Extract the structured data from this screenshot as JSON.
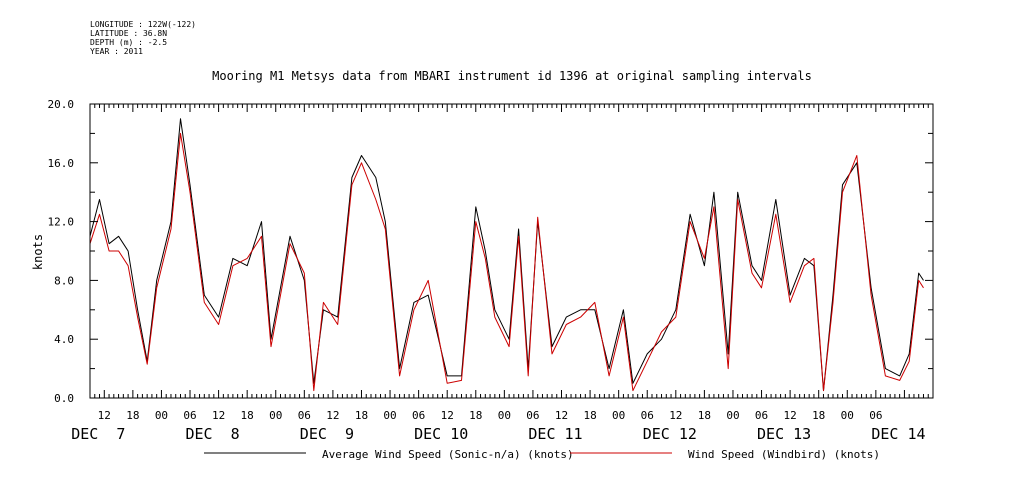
{
  "header": {
    "longitude": "LONGITUDE : 122W(-122)",
    "latitude": "LATITUDE : 36.8N",
    "depth": "DEPTH (m) : -2.5",
    "year": "YEAR : 2011"
  },
  "colors": {
    "axis": "#000000",
    "series1": "#000000",
    "series2": "#cc0000"
  },
  "chart_data": {
    "type": "line",
    "title": "Mooring M1 Metsys data from MBARI instrument id 1396 at original sampling intervals",
    "ylabel": "knots",
    "xlabel": "",
    "ylim": [
      0,
      20
    ],
    "yticks": [
      "0.0",
      "4.0",
      "8.0",
      "12.0",
      "16.0",
      "20.0"
    ],
    "xlim": [
      "2011-12-07T09:00",
      "2011-12-14T18:00"
    ],
    "hour_ticks": [
      {
        "t": "2011-12-07T12:00",
        "label": "12"
      },
      {
        "t": "2011-12-07T18:00",
        "label": "18"
      },
      {
        "t": "2011-12-08T00:00",
        "label": "00"
      },
      {
        "t": "2011-12-08T06:00",
        "label": "06"
      },
      {
        "t": "2011-12-08T12:00",
        "label": "12"
      },
      {
        "t": "2011-12-08T18:00",
        "label": "18"
      },
      {
        "t": "2011-12-09T00:00",
        "label": "00"
      },
      {
        "t": "2011-12-09T06:00",
        "label": "06"
      },
      {
        "t": "2011-12-09T12:00",
        "label": "12"
      },
      {
        "t": "2011-12-09T18:00",
        "label": "18"
      },
      {
        "t": "2011-12-10T00:00",
        "label": "00"
      },
      {
        "t": "2011-12-10T06:00",
        "label": "06"
      },
      {
        "t": "2011-12-10T12:00",
        "label": "12"
      },
      {
        "t": "2011-12-10T18:00",
        "label": "18"
      },
      {
        "t": "2011-12-11T00:00",
        "label": "00"
      },
      {
        "t": "2011-12-11T06:00",
        "label": "06"
      },
      {
        "t": "2011-12-11T12:00",
        "label": "12"
      },
      {
        "t": "2011-12-11T18:00",
        "label": "18"
      },
      {
        "t": "2011-12-12T00:00",
        "label": "00"
      },
      {
        "t": "2011-12-12T06:00",
        "label": "06"
      },
      {
        "t": "2011-12-12T12:00",
        "label": "12"
      },
      {
        "t": "2011-12-12T18:00",
        "label": "18"
      },
      {
        "t": "2011-12-13T00:00",
        "label": "00"
      },
      {
        "t": "2011-12-13T06:00",
        "label": "06"
      },
      {
        "t": "2011-12-13T12:00",
        "label": "12"
      },
      {
        "t": "2011-12-13T18:00",
        "label": "18"
      },
      {
        "t": "2011-12-14T00:00",
        "label": "00"
      },
      {
        "t": "2011-12-14T06:00",
        "label": "06"
      }
    ],
    "day_labels": [
      {
        "t": "2011-12-07T12:00",
        "label": "DEC  7"
      },
      {
        "t": "2011-12-08T12:00",
        "label": "DEC  8"
      },
      {
        "t": "2011-12-09T12:00",
        "label": "DEC  9"
      },
      {
        "t": "2011-12-10T12:00",
        "label": "DEC 10"
      },
      {
        "t": "2011-12-11T12:00",
        "label": "DEC 11"
      },
      {
        "t": "2011-12-12T12:00",
        "label": "DEC 12"
      },
      {
        "t": "2011-12-13T12:00",
        "label": "DEC 13"
      },
      {
        "t": "2011-12-14T12:00",
        "label": "DEC 14"
      }
    ],
    "series": [
      {
        "name": "Average Wind Speed (Sonic-n/a) (knots)",
        "x": [
          "2011-12-07T09:00",
          "2011-12-07T11:00",
          "2011-12-07T13:00",
          "2011-12-07T15:00",
          "2011-12-07T17:00",
          "2011-12-07T19:00",
          "2011-12-07T21:00",
          "2011-12-07T23:00",
          "2011-12-08T02:00",
          "2011-12-08T04:00",
          "2011-12-08T06:00",
          "2011-12-08T09:00",
          "2011-12-08T12:00",
          "2011-12-08T15:00",
          "2011-12-08T18:00",
          "2011-12-08T21:00",
          "2011-12-08T23:00",
          "2011-12-09T03:00",
          "2011-12-09T06:00",
          "2011-12-09T08:00",
          "2011-12-09T10:00",
          "2011-12-09T13:00",
          "2011-12-09T16:00",
          "2011-12-09T18:00",
          "2011-12-09T21:00",
          "2011-12-09T23:00",
          "2011-12-10T02:00",
          "2011-12-10T05:00",
          "2011-12-10T08:00",
          "2011-12-10T12:00",
          "2011-12-10T15:00",
          "2011-12-10T18:00",
          "2011-12-10T20:00",
          "2011-12-10T22:00",
          "2011-12-11T01:00",
          "2011-12-11T03:00",
          "2011-12-11T05:00",
          "2011-12-11T07:00",
          "2011-12-11T10:00",
          "2011-12-11T13:00",
          "2011-12-11T16:00",
          "2011-12-11T19:00",
          "2011-12-11T22:00",
          "2011-12-12T01:00",
          "2011-12-12T03:00",
          "2011-12-12T06:00",
          "2011-12-12T09:00",
          "2011-12-12T12:00",
          "2011-12-12T15:00",
          "2011-12-12T18:00",
          "2011-12-12T20:00",
          "2011-12-12T23:00",
          "2011-12-13T01:00",
          "2011-12-13T04:00",
          "2011-12-13T06:00",
          "2011-12-13T09:00",
          "2011-12-13T12:00",
          "2011-12-13T15:00",
          "2011-12-13T17:00",
          "2011-12-13T19:00",
          "2011-12-13T21:00",
          "2011-12-13T23:00",
          "2011-12-14T02:00",
          "2011-12-14T05:00",
          "2011-12-14T08:00",
          "2011-12-14T11:00",
          "2011-12-14T13:00",
          "2011-12-14T15:00",
          "2011-12-14T16:00"
        ],
        "values": [
          11.0,
          13.5,
          10.5,
          11.0,
          10.0,
          6.0,
          2.5,
          8.0,
          12.0,
          19.0,
          14.5,
          7.0,
          5.5,
          9.5,
          9.0,
          12.0,
          4.0,
          11.0,
          8.0,
          1.0,
          6.0,
          5.5,
          15.0,
          16.5,
          15.0,
          12.0,
          2.0,
          6.5,
          7.0,
          1.5,
          1.5,
          13.0,
          10.0,
          6.0,
          4.0,
          11.5,
          2.0,
          12.0,
          3.5,
          5.5,
          6.0,
          6.0,
          2.0,
          6.0,
          1.0,
          3.0,
          4.0,
          6.0,
          12.5,
          9.0,
          14.0,
          3.0,
          14.0,
          9.0,
          8.0,
          13.5,
          7.0,
          9.5,
          9.0,
          0.5,
          7.0,
          14.5,
          16.0,
          7.5,
          2.0,
          1.5,
          3.0,
          8.5,
          8.0
        ]
      },
      {
        "name": "Wind Speed (Windbird) (knots)",
        "x": [
          "2011-12-07T09:00",
          "2011-12-07T11:00",
          "2011-12-07T13:00",
          "2011-12-07T15:00",
          "2011-12-07T17:00",
          "2011-12-07T19:00",
          "2011-12-07T21:00",
          "2011-12-07T23:00",
          "2011-12-08T02:00",
          "2011-12-08T04:00",
          "2011-12-08T06:00",
          "2011-12-08T09:00",
          "2011-12-08T12:00",
          "2011-12-08T15:00",
          "2011-12-08T18:00",
          "2011-12-08T21:00",
          "2011-12-08T23:00",
          "2011-12-09T03:00",
          "2011-12-09T06:00",
          "2011-12-09T08:00",
          "2011-12-09T10:00",
          "2011-12-09T13:00",
          "2011-12-09T16:00",
          "2011-12-09T18:00",
          "2011-12-09T21:00",
          "2011-12-09T23:00",
          "2011-12-10T02:00",
          "2011-12-10T05:00",
          "2011-12-10T08:00",
          "2011-12-10T12:00",
          "2011-12-10T15:00",
          "2011-12-10T18:00",
          "2011-12-10T20:00",
          "2011-12-10T22:00",
          "2011-12-11T01:00",
          "2011-12-11T03:00",
          "2011-12-11T05:00",
          "2011-12-11T07:00",
          "2011-12-11T10:00",
          "2011-12-11T13:00",
          "2011-12-11T16:00",
          "2011-12-11T19:00",
          "2011-12-11T22:00",
          "2011-12-12T01:00",
          "2011-12-12T03:00",
          "2011-12-12T06:00",
          "2011-12-12T09:00",
          "2011-12-12T12:00",
          "2011-12-12T15:00",
          "2011-12-12T18:00",
          "2011-12-12T20:00",
          "2011-12-12T23:00",
          "2011-12-13T01:00",
          "2011-12-13T04:00",
          "2011-12-13T06:00",
          "2011-12-13T09:00",
          "2011-12-13T12:00",
          "2011-12-13T15:00",
          "2011-12-13T17:00",
          "2011-12-13T19:00",
          "2011-12-13T21:00",
          "2011-12-13T23:00",
          "2011-12-14T02:00",
          "2011-12-14T05:00",
          "2011-12-14T08:00",
          "2011-12-14T11:00",
          "2011-12-14T13:00",
          "2011-12-14T15:00",
          "2011-12-14T16:00"
        ],
        "values": [
          10.5,
          12.5,
          10.0,
          10.0,
          9.0,
          5.5,
          2.3,
          7.5,
          11.5,
          18.0,
          14.0,
          6.5,
          5.0,
          9.0,
          9.5,
          11.0,
          3.5,
          10.5,
          8.5,
          0.5,
          6.5,
          5.0,
          14.5,
          16.0,
          13.5,
          11.5,
          1.5,
          6.0,
          8.0,
          1.0,
          1.2,
          12.0,
          9.5,
          5.5,
          3.5,
          11.0,
          1.5,
          12.3,
          3.0,
          5.0,
          5.5,
          6.5,
          1.5,
          5.5,
          0.5,
          2.5,
          4.5,
          5.5,
          12.0,
          9.5,
          13.0,
          2.0,
          13.5,
          8.5,
          7.5,
          12.5,
          6.5,
          9.0,
          9.5,
          0.5,
          6.5,
          14.0,
          16.5,
          7.0,
          1.5,
          1.2,
          2.5,
          8.0,
          7.5
        ]
      }
    ],
    "legend_placement": "bottom"
  }
}
